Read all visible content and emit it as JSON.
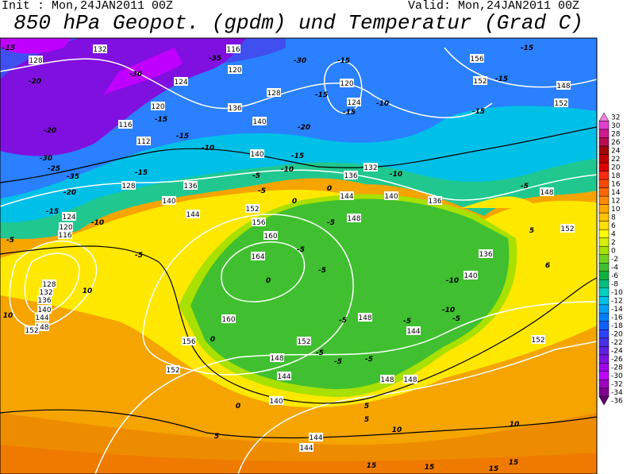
{
  "header": {
    "init": "Init : Mon,24JAN2011 00Z",
    "valid": "Valid: Mon,24JAN2011 00Z",
    "title": "850 hPa Geopot. (gpdm) und Temperatur (Grad C)"
  },
  "colorbar": {
    "levels": [
      32,
      30,
      28,
      26,
      24,
      22,
      20,
      18,
      16,
      14,
      12,
      10,
      8,
      6,
      4,
      2,
      0,
      -2,
      -4,
      -6,
      -8,
      -10,
      -12,
      -14,
      -16,
      -18,
      -20,
      -22,
      -24,
      -26,
      -28,
      -30,
      -32,
      -34,
      -36
    ],
    "colors": [
      "#f080e0",
      "#e040d0",
      "#d01890",
      "#b80c50",
      "#a00808",
      "#c00000",
      "#e00000",
      "#ff2a10",
      "#ff4a00",
      "#ff6a00",
      "#ff8a00",
      "#ffa800",
      "#ffc400",
      "#ffe000",
      "#ffff00",
      "#d8f000",
      "#a8e000",
      "#70d020",
      "#40c030",
      "#10b040",
      "#00c080",
      "#00d0c0",
      "#00c0e8",
      "#00a0f8",
      "#0080ff",
      "#1060ff",
      "#3040ff",
      "#4830e8",
      "#6020e0",
      "#8010e0",
      "#a000e8",
      "#c000ff",
      "#a000c0",
      "#800090",
      "#600070"
    ]
  },
  "map": {
    "geopotential_labels": [
      128,
      132,
      116,
      120,
      124,
      128,
      124,
      120,
      136,
      140,
      112,
      116,
      120,
      128,
      136,
      140,
      144,
      152,
      156,
      160,
      164,
      148,
      144,
      136,
      140,
      136,
      148,
      152,
      136,
      140,
      144,
      148,
      152,
      156,
      152,
      160,
      148,
      144,
      140,
      144,
      144,
      148,
      148,
      152,
      124,
      120,
      116,
      128,
      132,
      136,
      140,
      144,
      148,
      152,
      156,
      152,
      148,
      152,
      132,
      140
    ],
    "temperature_labels": [
      -15,
      -20,
      -30,
      -35,
      -30,
      -15,
      -15,
      -15,
      -15,
      -15,
      -10,
      -15,
      -20,
      -30,
      -25,
      -35,
      -20,
      -15,
      -10,
      -15,
      -10,
      -15,
      -15,
      -20,
      -15,
      -10,
      -10,
      -5,
      -5,
      -5,
      0,
      0,
      -5,
      -5,
      -5,
      0,
      -10,
      -10,
      -5,
      -5,
      -5,
      0,
      -5,
      -5,
      -5,
      -5,
      -5,
      10,
      10,
      5,
      6,
      0,
      5,
      5,
      5,
      10,
      10,
      15,
      15,
      15,
      15
    ]
  }
}
